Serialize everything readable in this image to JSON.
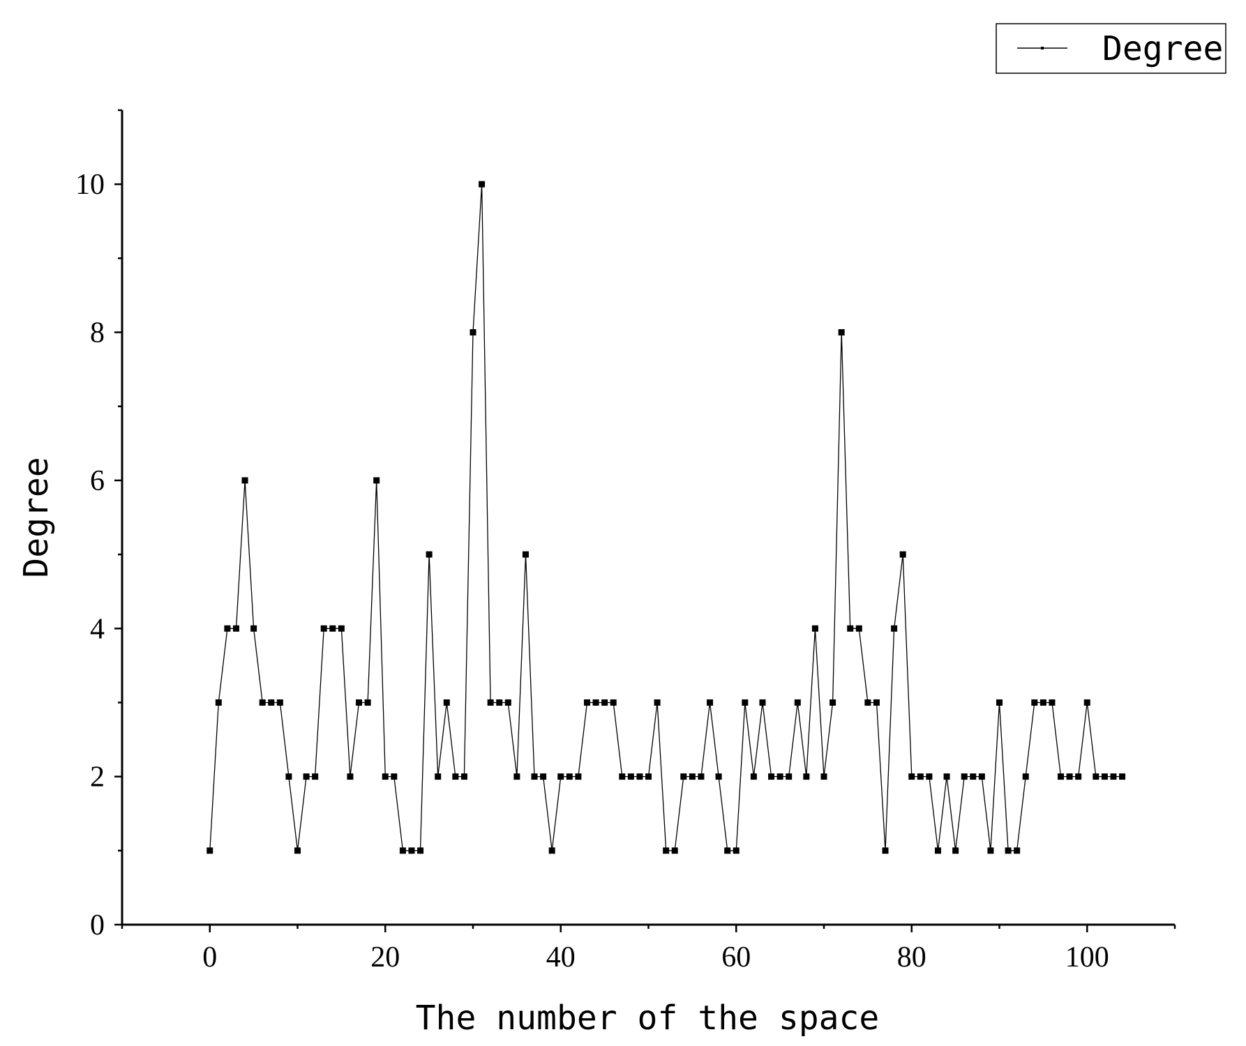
{
  "chart_data": {
    "type": "line",
    "xlabel": "The number of the space",
    "ylabel": "Degree",
    "xlim": [
      -10,
      110
    ],
    "ylim": [
      0,
      11
    ],
    "x_ticks": [
      0,
      20,
      40,
      60,
      80,
      100
    ],
    "x_tick_labels": [
      "0",
      "20",
      "40",
      "60",
      "80",
      "100"
    ],
    "y_ticks": [
      0,
      2,
      4,
      6,
      8,
      10
    ],
    "y_tick_labels": [
      "0",
      "2",
      "4",
      "6",
      "8",
      "10"
    ],
    "grid": false,
    "legend": {
      "position": "top-right",
      "entries": [
        "Degree"
      ]
    },
    "line_color": "#000000",
    "marker": "square",
    "series": [
      {
        "name": "Degree",
        "x": [
          0,
          1,
          2,
          3,
          4,
          5,
          6,
          7,
          8,
          9,
          10,
          11,
          12,
          13,
          14,
          15,
          16,
          17,
          18,
          19,
          20,
          21,
          22,
          23,
          24,
          25,
          26,
          27,
          28,
          29,
          30,
          31,
          32,
          33,
          34,
          35,
          36,
          37,
          38,
          39,
          40,
          41,
          42,
          43,
          44,
          45,
          46,
          47,
          48,
          49,
          50,
          51,
          52,
          53,
          54,
          55,
          56,
          57,
          58,
          59,
          60,
          61,
          62,
          63,
          64,
          65,
          66,
          67,
          68,
          69,
          70,
          71,
          72,
          73,
          74,
          75,
          76,
          77,
          78,
          79,
          80,
          81,
          82,
          83,
          84,
          85,
          86,
          87,
          88,
          89,
          90,
          91,
          92,
          93,
          94,
          95,
          96,
          97,
          98,
          99,
          100,
          101,
          102,
          103,
          104
        ],
        "y": [
          1,
          3,
          4,
          4,
          6,
          4,
          3,
          3,
          3,
          2,
          1,
          2,
          2,
          4,
          4,
          4,
          2,
          3,
          3,
          6,
          2,
          2,
          1,
          1,
          1,
          5,
          2,
          3,
          2,
          2,
          8,
          10,
          3,
          3,
          3,
          2,
          5,
          2,
          2,
          1,
          2,
          2,
          2,
          3,
          3,
          3,
          3,
          2,
          2,
          2,
          2,
          3,
          1,
          1,
          2,
          2,
          2,
          3,
          2,
          1,
          1,
          3,
          2,
          3,
          2,
          2,
          2,
          3,
          2,
          4,
          2,
          3,
          8,
          4,
          4,
          3,
          3,
          1,
          4,
          5,
          2,
          2,
          2,
          1,
          2,
          1,
          2,
          2,
          2,
          1,
          3,
          1,
          1,
          2,
          3,
          3,
          3,
          2,
          2,
          2,
          3,
          2,
          2,
          2,
          2
        ]
      }
    ]
  }
}
